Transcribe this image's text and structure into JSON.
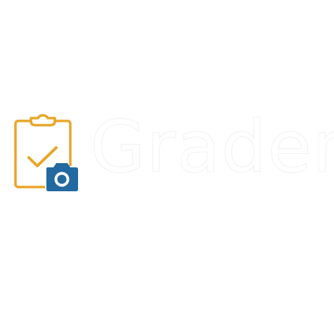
{
  "brand": {
    "name": "Grader",
    "icon": "clipboard-check-camera-icon"
  },
  "colors": {
    "background": "#ffffff",
    "clipboard": "#e8a628",
    "camera": "#2169a0",
    "wordmark_fill": "#ffffff",
    "wordmark_outline": "#f1f1f1"
  }
}
